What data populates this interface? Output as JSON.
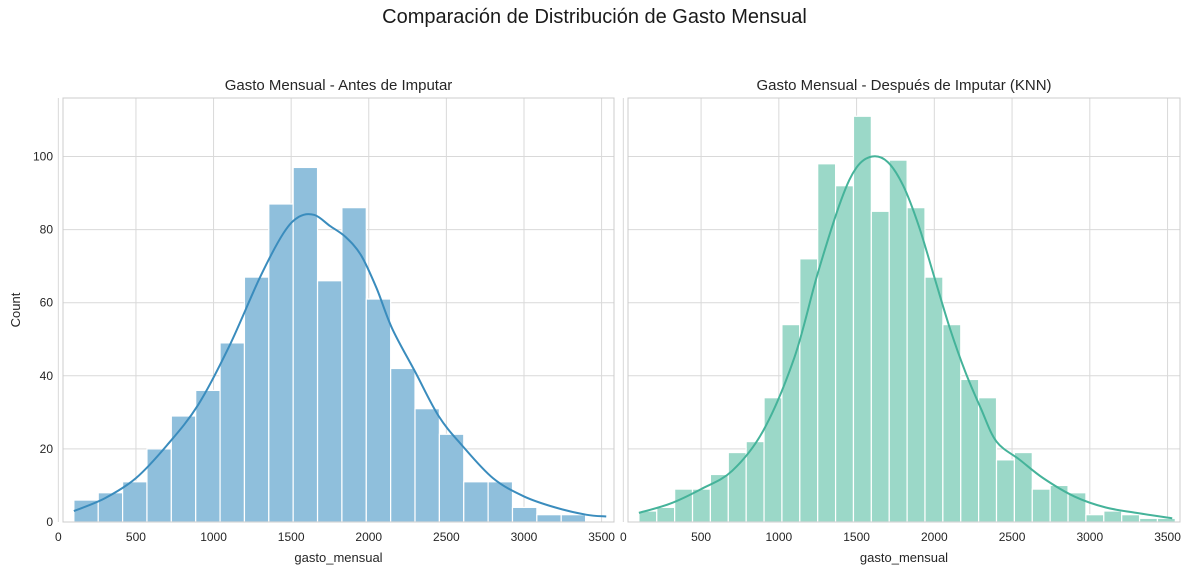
{
  "suptitle": "Comparación de Distribución de Gasto Mensual",
  "chart_data": [
    {
      "type": "histogram",
      "title": "Gasto Mensual - Antes de Imputar",
      "xlabel": "gasto_mensual",
      "ylabel": "Count",
      "xlim": [
        30,
        3580
      ],
      "ylim": [
        0,
        116
      ],
      "xticks": [
        0,
        500,
        1000,
        1500,
        2000,
        2500,
        3000,
        3500
      ],
      "yticks": [
        0,
        20,
        40,
        60,
        80,
        100
      ],
      "grid": true,
      "bar_color": "#8fbfdc",
      "kde_color": "#3a8cbd",
      "bin_start": 100,
      "bin_width": 157,
      "counts": [
        6,
        8,
        11,
        20,
        29,
        36,
        49,
        67,
        87,
        97,
        66,
        86,
        61,
        42,
        31,
        24,
        11,
        11,
        4,
        2,
        2
      ],
      "kde": [
        [
          100,
          3
        ],
        [
          300,
          6.5
        ],
        [
          500,
          12
        ],
        [
          700,
          21
        ],
        [
          900,
          32
        ],
        [
          1100,
          48
        ],
        [
          1300,
          67
        ],
        [
          1450,
          79
        ],
        [
          1550,
          83.5
        ],
        [
          1650,
          84
        ],
        [
          1750,
          81
        ],
        [
          1850,
          78
        ],
        [
          1950,
          73
        ],
        [
          2050,
          64
        ],
        [
          2150,
          53
        ],
        [
          2300,
          41
        ],
        [
          2450,
          29
        ],
        [
          2600,
          21
        ],
        [
          2800,
          12
        ],
        [
          3000,
          7
        ],
        [
          3200,
          4
        ],
        [
          3400,
          2
        ],
        [
          3530,
          1.5
        ]
      ]
    },
    {
      "type": "histogram",
      "title": "Gasto Mensual - Después de Imputar (KNN)",
      "xlabel": "gasto_mensual",
      "ylabel": "",
      "xlim": [
        30,
        3580
      ],
      "ylim": [
        0,
        116
      ],
      "xticks": [
        0,
        500,
        1000,
        1500,
        2000,
        2500,
        3000,
        3500
      ],
      "yticks": [
        0,
        20,
        40,
        60,
        80,
        100
      ],
      "grid": true,
      "bar_color": "#9bd8c8",
      "kde_color": "#45b39a",
      "bin_start": 100,
      "bin_width": 115,
      "counts": [
        3,
        4,
        9,
        9,
        13,
        19,
        22,
        34,
        54,
        72,
        98,
        92,
        111,
        85,
        99,
        86,
        67,
        54,
        39,
        34,
        17,
        19,
        9,
        10,
        8,
        2,
        3,
        2,
        1,
        1
      ],
      "kde": [
        [
          100,
          2.5
        ],
        [
          300,
          5
        ],
        [
          500,
          9
        ],
        [
          700,
          14
        ],
        [
          900,
          25
        ],
        [
          1100,
          45
        ],
        [
          1250,
          68
        ],
        [
          1400,
          88
        ],
        [
          1500,
          97
        ],
        [
          1600,
          100
        ],
        [
          1700,
          98.5
        ],
        [
          1800,
          92
        ],
        [
          1900,
          81
        ],
        [
          2000,
          67
        ],
        [
          2100,
          53
        ],
        [
          2200,
          41
        ],
        [
          2300,
          31
        ],
        [
          2400,
          22
        ],
        [
          2550,
          17
        ],
        [
          2700,
          12
        ],
        [
          2900,
          7
        ],
        [
          3100,
          4
        ],
        [
          3300,
          2.5
        ],
        [
          3530,
          1
        ]
      ]
    }
  ]
}
